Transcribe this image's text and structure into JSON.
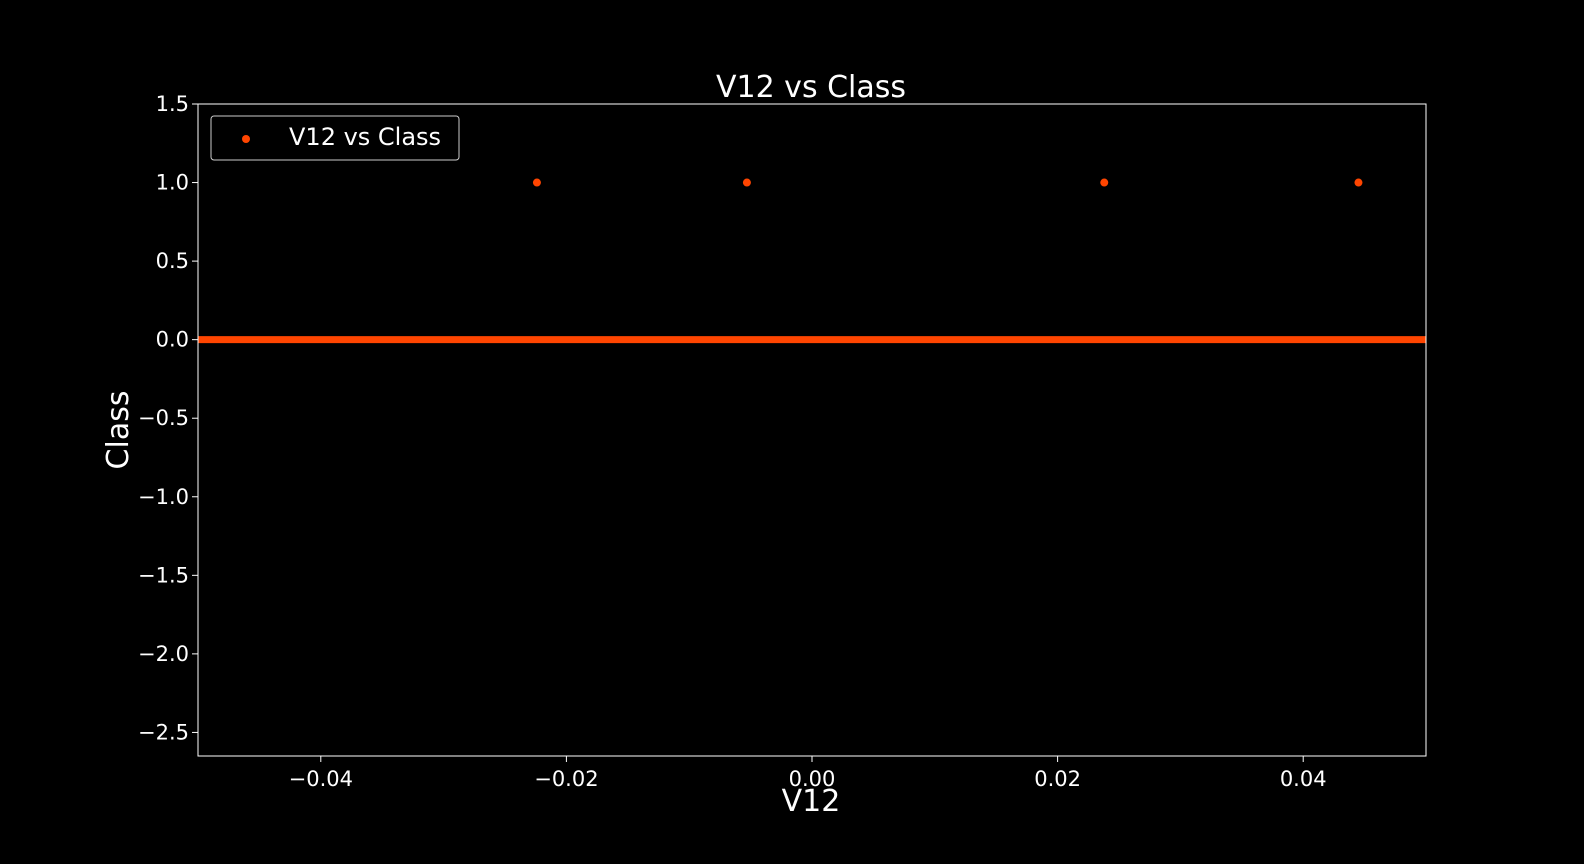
{
  "chart_data": {
    "type": "scatter",
    "title": "V12 vs Class",
    "xlabel": "V12",
    "ylabel": "Class",
    "xlim": [
      -0.05,
      0.05
    ],
    "ylim": [
      -2.65,
      1.5
    ],
    "xticks": [
      -0.04,
      -0.02,
      0.0,
      0.02,
      0.04
    ],
    "xtick_labels": [
      "−0.04",
      "−0.02",
      "0.00",
      "0.02",
      "0.04"
    ],
    "yticks": [
      1.5,
      1.0,
      0.5,
      0.0,
      -0.5,
      -1.0,
      -1.5,
      -2.0,
      -2.5
    ],
    "ytick_labels": [
      "1.5",
      "1.0",
      "0.5",
      "0.0",
      "−0.5",
      "−1.0",
      "−1.5",
      "−2.0",
      "−2.5"
    ],
    "grid": false,
    "legend_position": "top-left",
    "background": "#000000",
    "series": [
      {
        "name": "V12 vs Class",
        "color": "#ff4500",
        "points": [
          {
            "x": -0.0224,
            "y": 1
          },
          {
            "x": -0.0053,
            "y": 1
          },
          {
            "x": 0.0238,
            "y": 1
          },
          {
            "x": 0.0445,
            "y": 1
          }
        ],
        "dense_band": {
          "x_from": -0.05,
          "x_to": 0.05,
          "y": 0
        }
      }
    ]
  }
}
